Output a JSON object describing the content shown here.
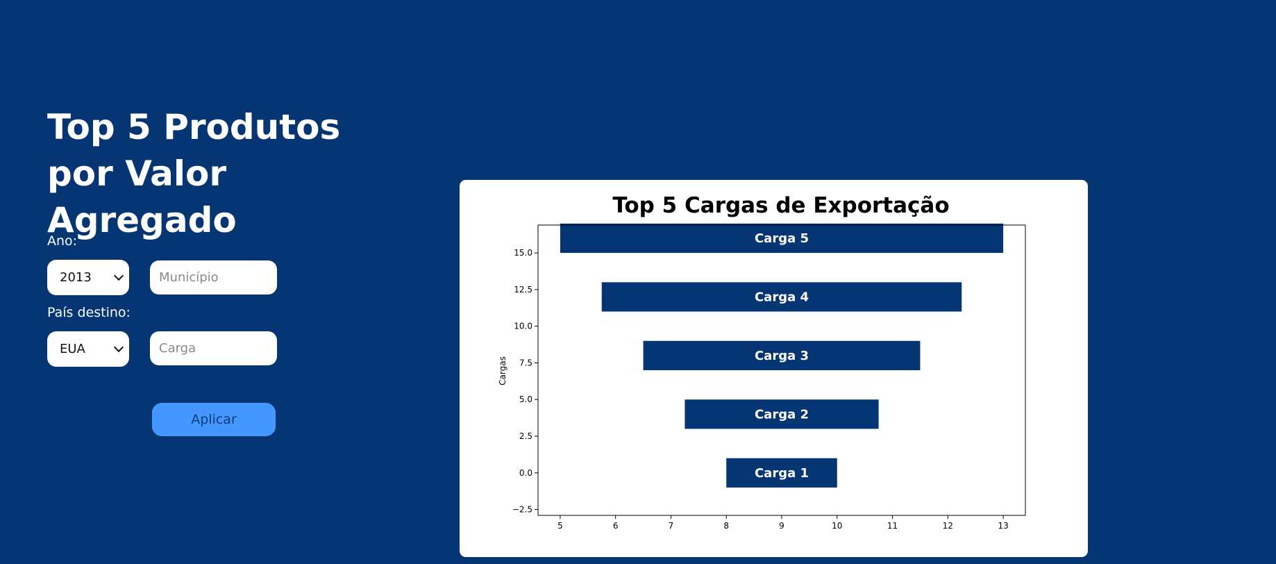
{
  "page": {
    "title": "Top 5 Produtos por Valor Agregado"
  },
  "filters": {
    "year_label": "Ano:",
    "year_value": "2013",
    "municipio_placeholder": "Município",
    "country_label": "País destino:",
    "country_value": "EUA",
    "carga_placeholder": "Carga",
    "apply_label": "Aplicar"
  },
  "colors": {
    "background": "#053673",
    "bar": "#053673",
    "button": "#4397ff"
  },
  "chart_data": {
    "type": "bar",
    "orientation": "horizontal",
    "title": "Top 5 Cargas de Exportação",
    "xlabel": "",
    "ylabel": "Cargas",
    "xlim": [
      4.6,
      13.4
    ],
    "ylim": [
      -2.9,
      16.9
    ],
    "xticks": [
      5,
      6,
      7,
      8,
      9,
      10,
      11,
      12,
      13
    ],
    "yticks": [
      -2.5,
      0.0,
      2.5,
      5.0,
      7.5,
      10.0,
      12.5,
      15.0
    ],
    "xtick_labels": [
      "5",
      "6",
      "7",
      "8",
      "9",
      "10",
      "11",
      "12",
      "13"
    ],
    "ytick_labels": [
      "−2.5",
      "0.0",
      "2.5",
      "5.0",
      "7.5",
      "10.0",
      "12.5",
      "15.0"
    ],
    "bar_height": 2.0,
    "bars": [
      {
        "label": "Carga 1",
        "y": 0,
        "x_start": 8.0,
        "x_end": 10.0
      },
      {
        "label": "Carga 2",
        "y": 4,
        "x_start": 7.25,
        "x_end": 10.75
      },
      {
        "label": "Carga 3",
        "y": 8,
        "x_start": 6.5,
        "x_end": 11.5
      },
      {
        "label": "Carga 4",
        "y": 12,
        "x_start": 5.75,
        "x_end": 12.25
      },
      {
        "label": "Carga 5",
        "y": 16,
        "x_start": 5.0,
        "x_end": 13.0
      }
    ],
    "grid": false
  }
}
